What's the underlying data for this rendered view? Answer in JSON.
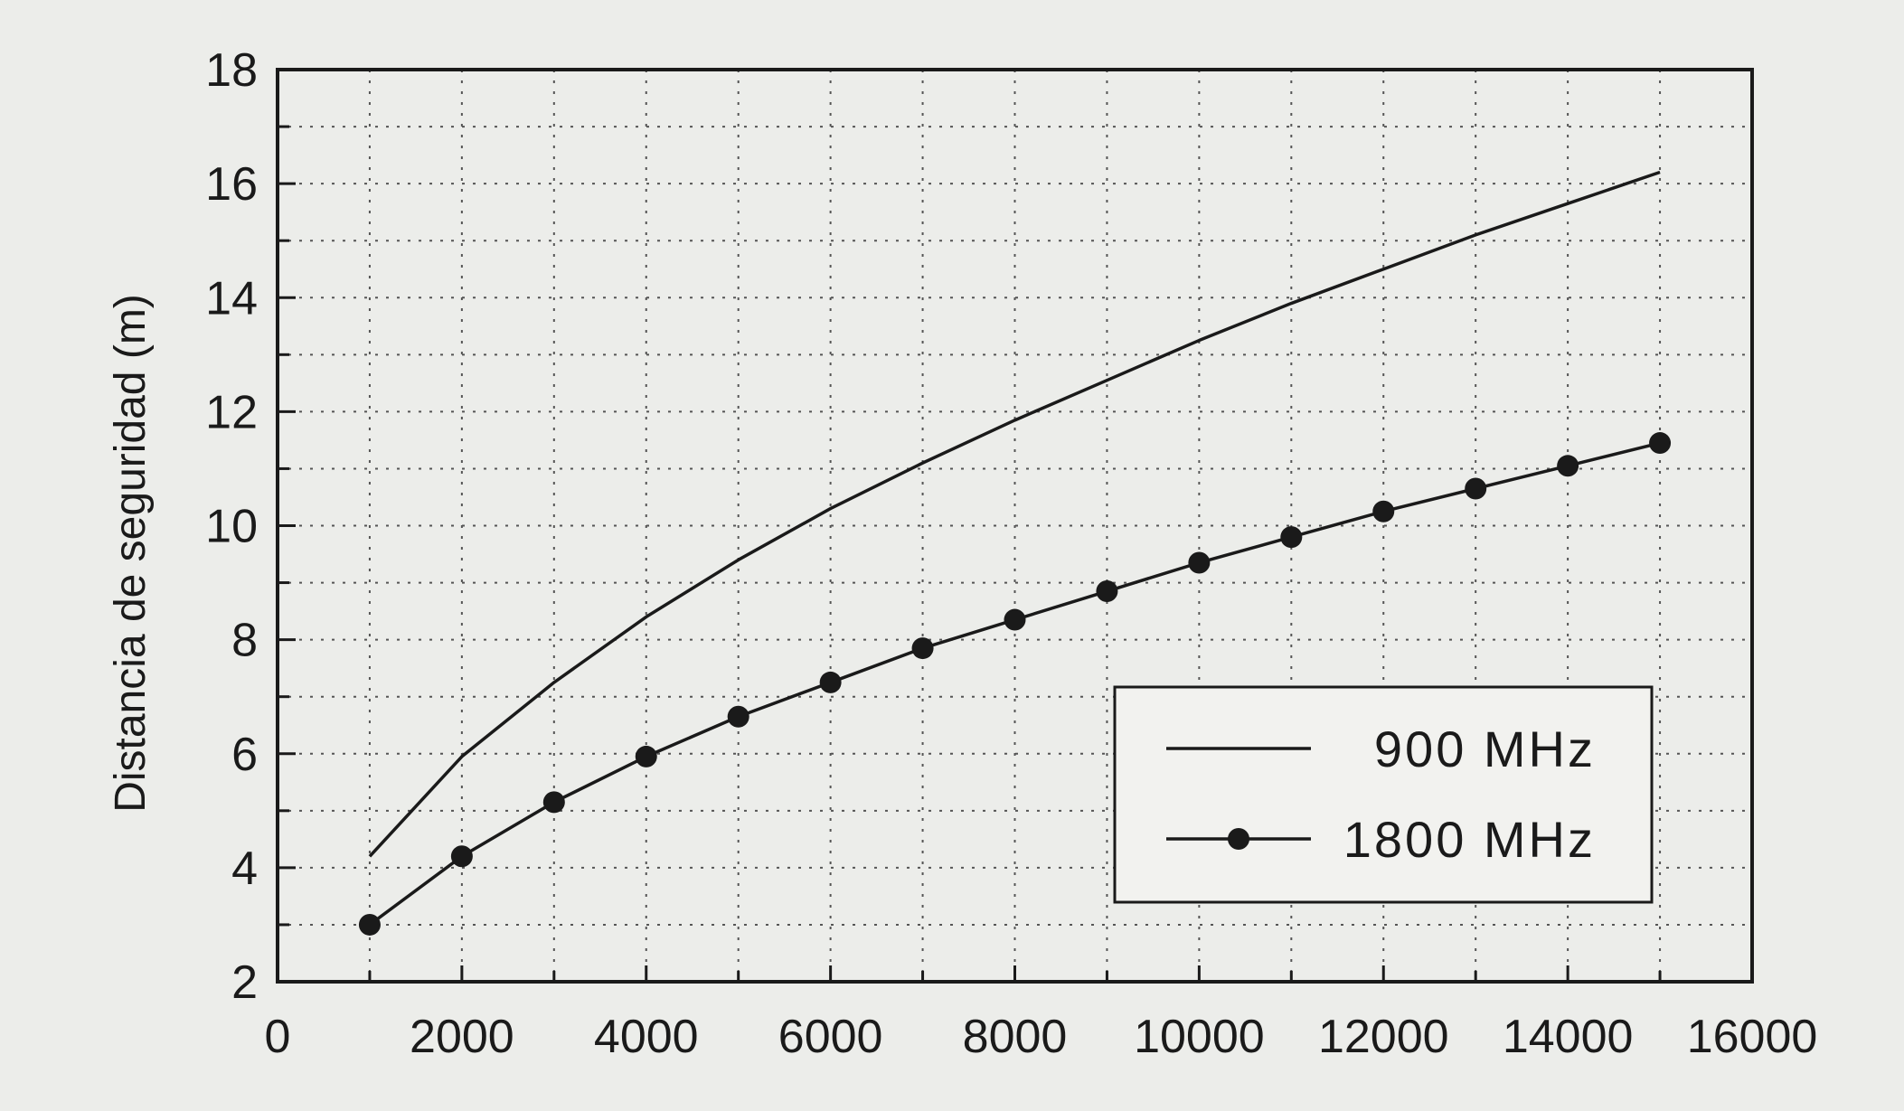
{
  "chart_data": {
    "type": "line",
    "title": "",
    "xlabel": "",
    "ylabel": "Distancia de seguridad (m)",
    "xlim": [
      0,
      16000
    ],
    "ylim": [
      2,
      18
    ],
    "x_ticks": [
      0,
      2000,
      4000,
      6000,
      8000,
      10000,
      12000,
      14000,
      16000
    ],
    "y_ticks": [
      2,
      4,
      6,
      8,
      10,
      12,
      14,
      16,
      18
    ],
    "grid": true,
    "legend_position": "bottom-right",
    "x": [
      1000,
      2000,
      3000,
      4000,
      5000,
      6000,
      7000,
      8000,
      9000,
      10000,
      11000,
      12000,
      13000,
      14000,
      15000
    ],
    "series": [
      {
        "name": "900 MHz",
        "marker": "none",
        "values": [
          4.2,
          5.95,
          7.25,
          8.4,
          9.4,
          10.3,
          11.1,
          11.85,
          12.55,
          13.25,
          13.9,
          14.5,
          15.1,
          15.65,
          16.2
        ]
      },
      {
        "name": "1800 MHz",
        "marker": "circle",
        "values": [
          3.0,
          4.2,
          5.15,
          5.95,
          6.65,
          7.25,
          7.85,
          8.35,
          8.85,
          9.35,
          9.8,
          10.25,
          10.65,
          11.05,
          11.45
        ]
      }
    ]
  }
}
